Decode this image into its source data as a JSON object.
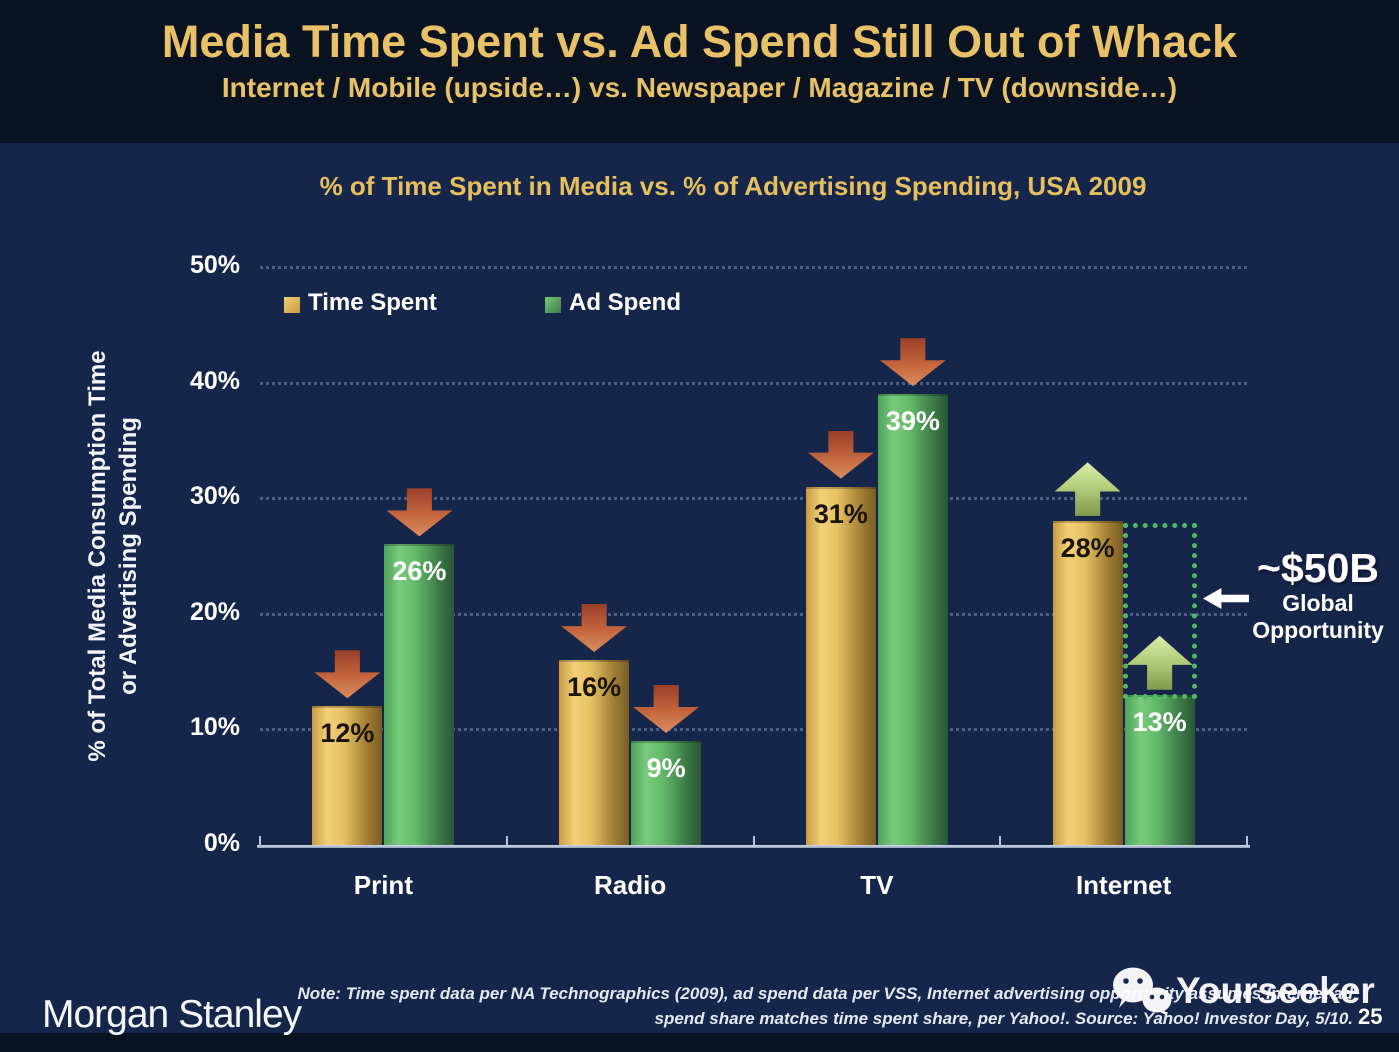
{
  "slide": {
    "title": "Media Time Spent vs. Ad Spend Still Out of Whack",
    "subtitle": "Internet / Mobile (upside…) vs. Newspaper / Magazine / TV (downside…)",
    "footer_logo": "Morgan Stanley",
    "note_line1": "Note: Time spent data per NA Technographics (2009), ad spend data per VSS, Internet advertising opportunity assumes Internet ad",
    "note_line2": "spend share matches time spent share, per Yahoo!. Source: Yahoo! Investor Day, 5/10.",
    "page_number": "25",
    "watermark": "Yourseeker"
  },
  "chart_data": {
    "type": "bar",
    "title": "% of Time Spent in Media vs. % of Advertising Spending, USA 2009",
    "categories": [
      "Print",
      "Radio",
      "TV",
      "Internet"
    ],
    "series": [
      {
        "name": "Time Spent",
        "values": [
          12,
          16,
          31,
          28
        ]
      },
      {
        "name": "Ad Spend",
        "values": [
          26,
          9,
          39,
          13
        ]
      }
    ],
    "value_suffix": "%",
    "trend_arrows": {
      "Print": "down",
      "Radio": "down",
      "TV": "down",
      "Internet": "up"
    },
    "ylabel_line1": "% of Total Media Consumption Time",
    "ylabel_line2": "or Advertising Spending",
    "yticks": [
      "0%",
      "10%",
      "20%",
      "30%",
      "40%",
      "50%"
    ],
    "ylim": [
      0,
      50
    ],
    "grid": "dotted-horizontal",
    "legend_position": "inside-top-left",
    "annotation": {
      "headline": "~$50B",
      "line1": "Global",
      "line2": "Opportunity",
      "marker": "dotted box on Internet Ad Spend bar from 13% up to 28%"
    }
  },
  "colors": {
    "background_band": "#0a1322",
    "panel": "#16254a",
    "title_gold": "#e9c169",
    "time_spent_gold": "#e7c163",
    "ad_spend_green": "#63bb69",
    "down_arrow_red": "#c4653d",
    "up_arrow_green": "#b5cf7d",
    "opportunity_dotted_green": "#4fbb63",
    "text_white": "#ffffff"
  }
}
